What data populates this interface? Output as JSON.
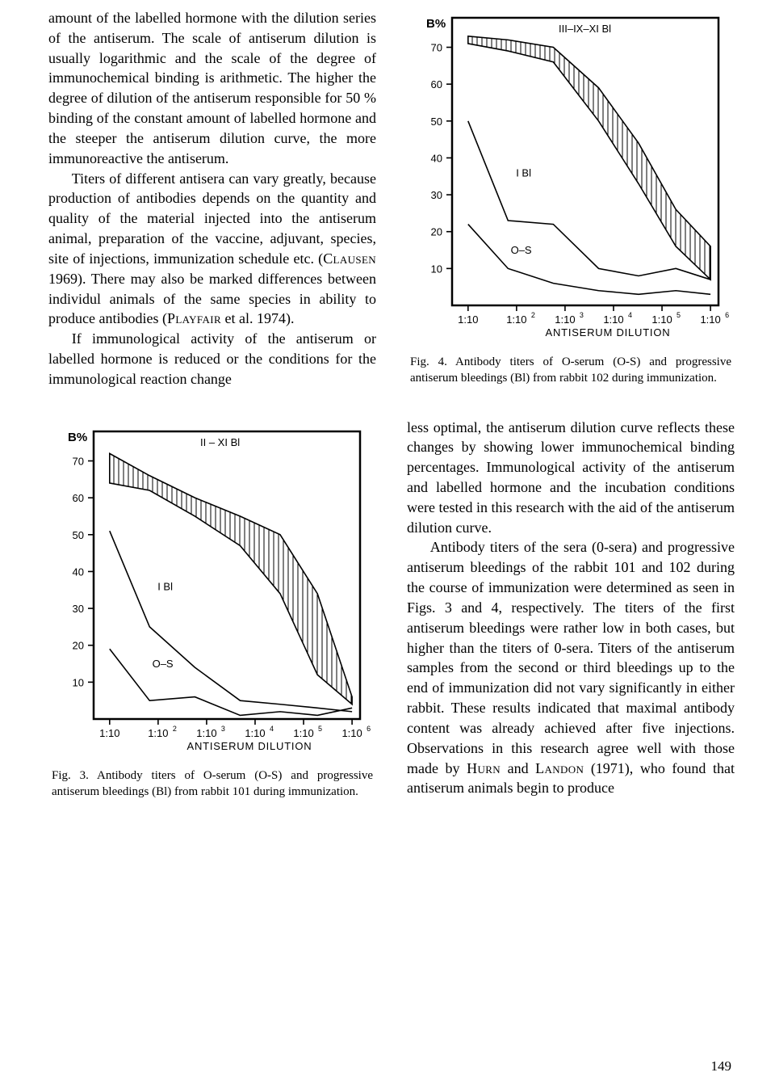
{
  "text": {
    "p1": "amount of the labelled hormone with the dilution series of the antiserum. The scale of antiserum dilution is usually logarithmic and the scale of the degree of immunochemical binding is arithmetic. The higher the degree of dilution of the antiserum responsible for 50 % binding of the constant amount of labelled hormone and the steeper the antiserum dilution curve, the more immunoreactive the antiserum.",
    "p2a": "Titers of different antisera can vary greatly, because production of antibodies depends on the quantity and quality of the material injected into the antiserum animal, preparation of the vaccine, adjuvant, species, site of injections, immunization schedule etc. (",
    "p2b": " 1969). There may also be marked differences between individul animals of the same species in ability to produce antibodies (",
    "p2c": " et al. 1974).",
    "sc_clausen": "Clausen",
    "sc_playfair": "Playfair",
    "p3": "If immunological activity of the antiserum or labelled hormone is reduced or the conditions for the immunological reaction change",
    "p4": "less optimal, the antiserum dilution curve reflects these changes by showing lower immunochemical binding percentages. Immunological activity of the antiserum and labelled hormone and the incubation conditions were tested in this research with the aid of the antiserum dilution curve.",
    "p5a": "Antibody titers of the sera (0-sera) and progressive antiserum bleedings of the rabbit 101 and 102 during the course of immunization were determined as seen in Figs. 3 and 4, respectively. The titers of the first antiserum bleedings were rather low in both cases, but higher than the titers of 0-sera. Titers of the antiserum samples from the second or third bleedings up to the end of immunization did not vary significantly in either rabbit. These results indicated that maximal antibody content was already achieved after five injections. Observations in this research agree well with those made by ",
    "p5b": " and ",
    "p5c": " (1971), who found that antiserum animals begin to produce",
    "sc_hurn": "Hurn",
    "sc_landon": "Landon",
    "pagenum": "149"
  },
  "fig3": {
    "caption": "Fig. 3. Antibody titers of O-serum (O-S) and progressive antiserum bleedings (Bl) from rabbit 101 during immunization.",
    "y_label": "B%",
    "x_label": "ANTISERUM  DILUTION",
    "x_ticks": [
      "1:10",
      "1:10",
      "1:10",
      "1:10",
      "1:10",
      "1:10"
    ],
    "x_exps": [
      "",
      "2",
      "3",
      "4",
      "5",
      "6"
    ],
    "y_ticks": [
      10,
      20,
      30,
      40,
      50,
      60,
      70
    ],
    "band_label": "II – XI Bl",
    "line1_label": "I Bl",
    "line2_label": "O–S",
    "band_upper": [
      [
        0.06,
        72
      ],
      [
        0.21,
        66
      ],
      [
        0.38,
        60
      ],
      [
        0.55,
        55
      ],
      [
        0.7,
        50
      ],
      [
        0.84,
        34
      ],
      [
        0.97,
        6
      ]
    ],
    "band_lower": [
      [
        0.06,
        64
      ],
      [
        0.21,
        62
      ],
      [
        0.38,
        55
      ],
      [
        0.55,
        47
      ],
      [
        0.7,
        34
      ],
      [
        0.84,
        12
      ],
      [
        0.97,
        4
      ]
    ],
    "line_ibl": [
      [
        0.06,
        51
      ],
      [
        0.21,
        25
      ],
      [
        0.38,
        14
      ],
      [
        0.55,
        5
      ],
      [
        0.7,
        4
      ],
      [
        0.84,
        3
      ],
      [
        0.97,
        2
      ]
    ],
    "line_os": [
      [
        0.06,
        19
      ],
      [
        0.21,
        5
      ],
      [
        0.38,
        6
      ],
      [
        0.55,
        1
      ],
      [
        0.7,
        2
      ],
      [
        0.84,
        1
      ],
      [
        0.97,
        3
      ]
    ],
    "colors": {
      "stroke": "#000000",
      "bg": "#ffffff"
    },
    "stroke_widths": {
      "frame": 2.5,
      "series": 1.6,
      "hatch": 1.0
    },
    "font_sizes": {
      "axis_tick": 13,
      "axis_label": 13,
      "series_label": 13,
      "exp": 9,
      "ylab": 15
    }
  },
  "fig4": {
    "caption": "Fig. 4. Antibody titers of O-serum (O-S) and progressive antiserum bleedings (Bl) from rabbit 102 during immunization.",
    "y_label": "B%",
    "x_label": "ANTISERUM  DILUTION",
    "x_ticks": [
      "1:10",
      "1:10",
      "1:10",
      "1:10",
      "1:10",
      "1:10"
    ],
    "x_exps": [
      "",
      "2",
      "3",
      "4",
      "5",
      "6"
    ],
    "y_ticks": [
      10,
      20,
      30,
      40,
      50,
      60,
      70
    ],
    "band_label": "III–IX–XI Bl",
    "line1_label": "I Bl",
    "line2_label": "O–S",
    "band_upper": [
      [
        0.06,
        73
      ],
      [
        0.21,
        72
      ],
      [
        0.38,
        70
      ],
      [
        0.55,
        59
      ],
      [
        0.7,
        44
      ],
      [
        0.84,
        26
      ],
      [
        0.97,
        16
      ]
    ],
    "band_lower": [
      [
        0.06,
        71
      ],
      [
        0.21,
        69
      ],
      [
        0.38,
        66
      ],
      [
        0.55,
        50
      ],
      [
        0.7,
        33
      ],
      [
        0.84,
        16
      ],
      [
        0.97,
        7
      ]
    ],
    "line_ibl": [
      [
        0.06,
        50
      ],
      [
        0.21,
        23
      ],
      [
        0.38,
        22
      ],
      [
        0.55,
        10
      ],
      [
        0.7,
        8
      ],
      [
        0.84,
        10
      ],
      [
        0.97,
        7
      ]
    ],
    "line_os": [
      [
        0.06,
        22
      ],
      [
        0.21,
        10
      ],
      [
        0.38,
        6
      ],
      [
        0.55,
        4
      ],
      [
        0.7,
        3
      ],
      [
        0.84,
        4
      ],
      [
        0.97,
        3
      ]
    ],
    "colors": {
      "stroke": "#000000",
      "bg": "#ffffff"
    },
    "stroke_widths": {
      "frame": 2.5,
      "series": 1.6,
      "hatch": 1.0
    },
    "font_sizes": {
      "axis_tick": 13,
      "axis_label": 13,
      "series_label": 13,
      "exp": 9,
      "ylab": 15
    }
  }
}
